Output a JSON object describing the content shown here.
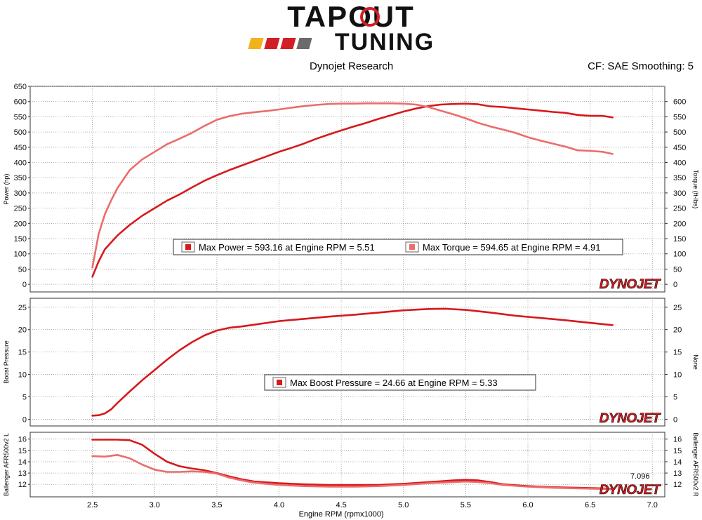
{
  "brand": {
    "logo_top": "TAPOUT",
    "logo_bottom": "TUNING",
    "stripe_colors": [
      "#f2b31a",
      "#d21f26",
      "#d21f26",
      "#6b6b6b"
    ]
  },
  "header": {
    "left": "Dynojet Research",
    "right": "CF: SAE Smoothing: 5"
  },
  "colors": {
    "power": "#d7191c",
    "torque": "#ec6c6c",
    "boost": "#d7191c",
    "afr_l": "#d7191c",
    "afr_r": "#ec6c6c"
  },
  "chart_data": [
    {
      "type": "line",
      "xlabel": "",
      "ylabel": "Power (hp)",
      "ylabel_right": "Torque (ft-lbs)",
      "xlim": [
        2.0,
        7.1
      ],
      "ylim": [
        -25,
        650
      ],
      "yticks": [
        0,
        50,
        100,
        150,
        200,
        250,
        300,
        350,
        400,
        450,
        500,
        550,
        600,
        650
      ],
      "yticks_right": [
        0,
        50,
        100,
        150,
        200,
        250,
        300,
        350,
        400,
        450,
        500,
        550,
        600
      ],
      "grid": true,
      "legend": "center",
      "legend_entries": [
        "Max Power = 593.16 at Engine RPM = 5.51",
        "Max Torque = 594.65 at Engine RPM = 4.91"
      ],
      "watermark": "DYNOJET",
      "series": [
        {
          "name": "Power",
          "x": [
            2.5,
            2.55,
            2.6,
            2.7,
            2.8,
            2.9,
            3.0,
            3.1,
            3.2,
            3.3,
            3.4,
            3.5,
            3.6,
            3.7,
            3.8,
            3.9,
            4.0,
            4.1,
            4.2,
            4.3,
            4.4,
            4.5,
            4.6,
            4.7,
            4.8,
            4.9,
            5.0,
            5.1,
            5.2,
            5.3,
            5.4,
            5.5,
            5.6,
            5.7,
            5.8,
            5.9,
            6.0,
            6.1,
            6.2,
            6.3,
            6.4,
            6.5,
            6.6,
            6.68
          ],
          "y": [
            25,
            75,
            115,
            160,
            195,
            225,
            250,
            275,
            295,
            318,
            340,
            358,
            375,
            390,
            405,
            420,
            435,
            448,
            462,
            478,
            492,
            505,
            518,
            530,
            543,
            555,
            567,
            577,
            585,
            590,
            592,
            593,
            591,
            584,
            582,
            578,
            574,
            570,
            566,
            563,
            556,
            553,
            553,
            548
          ]
        },
        {
          "name": "Torque",
          "x": [
            2.5,
            2.55,
            2.6,
            2.65,
            2.7,
            2.8,
            2.9,
            3.0,
            3.1,
            3.2,
            3.3,
            3.4,
            3.5,
            3.6,
            3.7,
            3.8,
            3.9,
            4.0,
            4.1,
            4.2,
            4.3,
            4.4,
            4.5,
            4.6,
            4.7,
            4.8,
            4.9,
            5.0,
            5.1,
            5.2,
            5.3,
            5.4,
            5.5,
            5.6,
            5.7,
            5.8,
            5.9,
            6.0,
            6.1,
            6.2,
            6.3,
            6.4,
            6.5,
            6.6,
            6.68
          ],
          "y": [
            55,
            165,
            230,
            275,
            315,
            375,
            410,
            435,
            460,
            478,
            497,
            520,
            540,
            552,
            560,
            565,
            569,
            574,
            580,
            585,
            589,
            592,
            593,
            593,
            594,
            594,
            594,
            593,
            590,
            582,
            570,
            558,
            545,
            530,
            518,
            508,
            497,
            483,
            472,
            462,
            452,
            440,
            438,
            435,
            428
          ]
        }
      ]
    },
    {
      "type": "line",
      "xlabel": "",
      "ylabel": "Boost Pressure",
      "ylabel_right": "None",
      "xlim": [
        2.0,
        7.1
      ],
      "ylim": [
        -1.5,
        27
      ],
      "yticks": [
        0,
        5,
        10,
        15,
        20,
        25
      ],
      "yticks_right": [
        0,
        5,
        10,
        15,
        20,
        25
      ],
      "grid": true,
      "legend": "bottom-center",
      "legend_entries": [
        "Max Boost Pressure = 24.66 at Engine RPM = 5.33"
      ],
      "watermark": "DYNOJET",
      "series": [
        {
          "name": "Boost Pressure",
          "x": [
            2.5,
            2.55,
            2.6,
            2.65,
            2.7,
            2.8,
            2.9,
            3.0,
            3.1,
            3.2,
            3.3,
            3.4,
            3.5,
            3.6,
            3.7,
            3.8,
            3.9,
            4.0,
            4.2,
            4.4,
            4.6,
            4.8,
            5.0,
            5.2,
            5.33,
            5.5,
            5.7,
            5.9,
            6.1,
            6.3,
            6.5,
            6.68
          ],
          "y": [
            0.8,
            0.9,
            1.3,
            2.2,
            3.6,
            6.2,
            8.7,
            11.0,
            13.3,
            15.4,
            17.2,
            18.7,
            19.8,
            20.4,
            20.7,
            21.1,
            21.5,
            21.9,
            22.4,
            22.9,
            23.3,
            23.8,
            24.3,
            24.6,
            24.66,
            24.4,
            23.8,
            23.1,
            22.6,
            22.1,
            21.5,
            21.0
          ]
        }
      ]
    },
    {
      "type": "line",
      "xlabel": "Engine RPM (rpmx1000)",
      "ylabel": "Ballenger AFR500v2 L",
      "ylabel_right": "Ballenger AFR500v2 R",
      "xlim": [
        2.0,
        7.1
      ],
      "xticks": [
        2.5,
        3.0,
        3.5,
        4.0,
        4.5,
        5.0,
        5.5,
        6.0,
        6.5,
        7.0
      ],
      "ylim": [
        10.9,
        16.6
      ],
      "yticks": [
        12,
        13,
        14,
        15,
        16
      ],
      "yticks_right": [
        12,
        13,
        14,
        15,
        16
      ],
      "grid": true,
      "annotations": [
        "7.096"
      ],
      "watermark": "DYNOJET",
      "series": [
        {
          "name": "Ballenger AFR500v2 L",
          "x": [
            2.5,
            2.6,
            2.7,
            2.8,
            2.9,
            3.0,
            3.1,
            3.2,
            3.3,
            3.4,
            3.5,
            3.6,
            3.7,
            3.8,
            4.0,
            4.2,
            4.4,
            4.6,
            4.8,
            5.0,
            5.2,
            5.4,
            5.5,
            5.6,
            5.7,
            5.8,
            6.0,
            6.2,
            6.4,
            6.6,
            6.68
          ],
          "y": [
            15.95,
            15.95,
            15.95,
            15.9,
            15.5,
            14.7,
            14.0,
            13.6,
            13.4,
            13.25,
            13.0,
            12.7,
            12.45,
            12.25,
            12.1,
            12.0,
            11.95,
            11.95,
            11.95,
            12.05,
            12.2,
            12.35,
            12.4,
            12.35,
            12.2,
            12.0,
            11.85,
            11.75,
            11.7,
            11.65,
            11.6
          ]
        },
        {
          "name": "Ballenger AFR500v2 R",
          "x": [
            2.5,
            2.6,
            2.7,
            2.8,
            2.9,
            3.0,
            3.1,
            3.2,
            3.3,
            3.4,
            3.5,
            3.6,
            3.7,
            3.8,
            4.0,
            4.2,
            4.4,
            4.6,
            4.8,
            5.0,
            5.2,
            5.4,
            5.5,
            5.6,
            5.7,
            5.8,
            6.0,
            6.2,
            6.4,
            6.6,
            6.68
          ],
          "y": [
            14.5,
            14.45,
            14.6,
            14.3,
            13.75,
            13.3,
            13.1,
            13.1,
            13.15,
            13.1,
            12.95,
            12.6,
            12.35,
            12.15,
            11.95,
            11.85,
            11.8,
            11.8,
            11.85,
            11.95,
            12.1,
            12.2,
            12.25,
            12.2,
            12.1,
            11.95,
            11.8,
            11.7,
            11.65,
            11.6,
            11.55
          ]
        }
      ]
    }
  ]
}
